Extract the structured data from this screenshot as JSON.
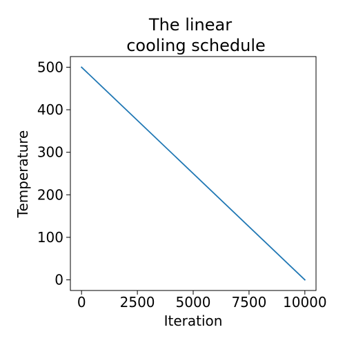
{
  "chart_data": {
    "type": "line",
    "title_lines": [
      "The linear",
      "cooling schedule"
    ],
    "xlabel": "Iteration",
    "ylabel": "Temperature",
    "x_ticks": [
      0,
      2500,
      5000,
      7500,
      10000
    ],
    "y_ticks": [
      0,
      100,
      200,
      300,
      400,
      500
    ],
    "xlim": [
      -500,
      10500
    ],
    "ylim": [
      -25,
      525
    ],
    "grid": false,
    "series": [
      {
        "x": [
          0,
          10000
        ],
        "y": [
          500,
          0
        ],
        "color": "#1f77b4"
      }
    ]
  }
}
